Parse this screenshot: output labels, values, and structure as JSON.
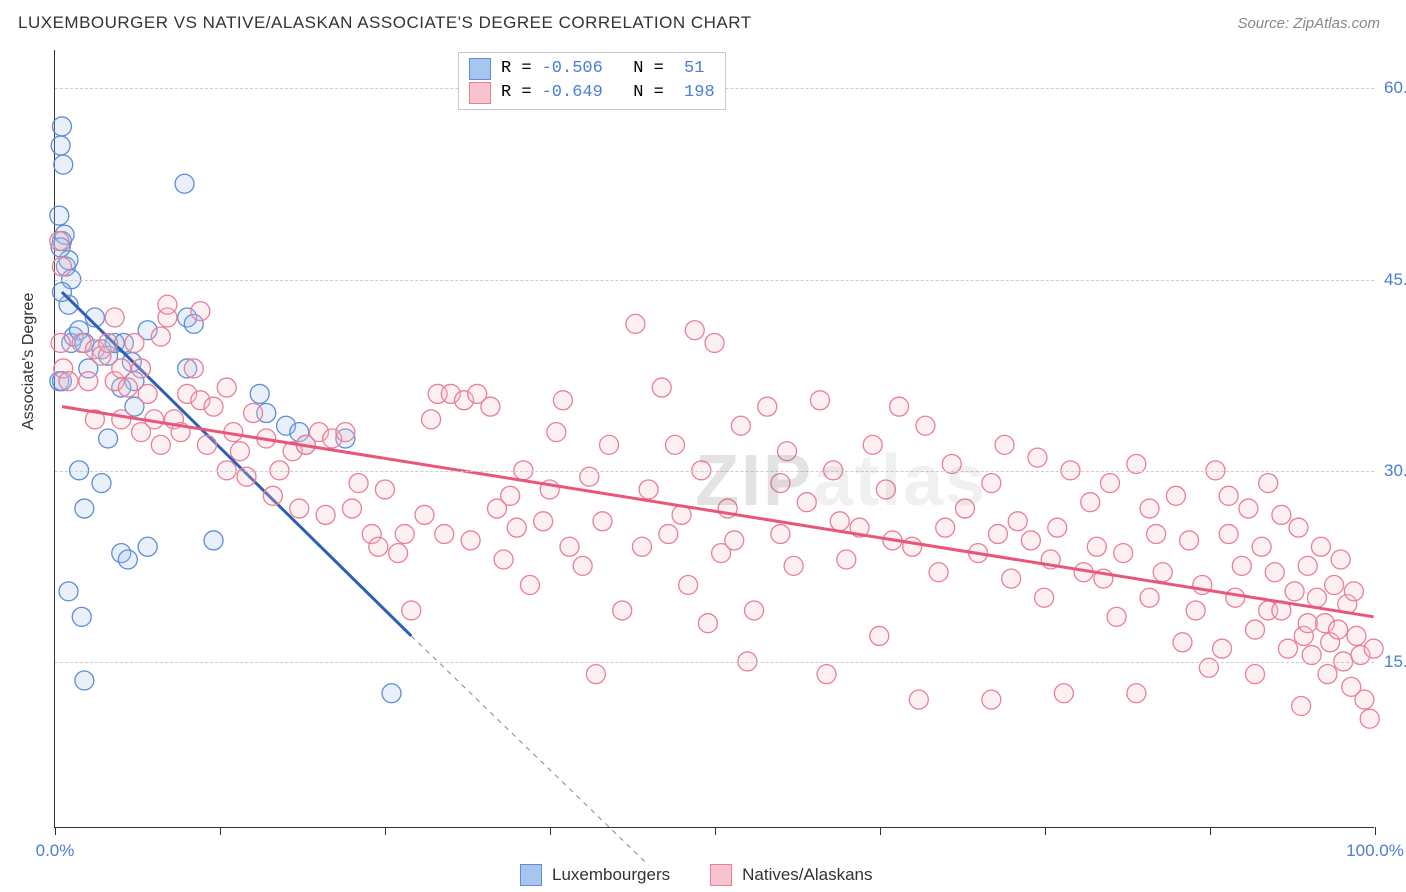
{
  "header": {
    "title": "LUXEMBOURGER VS NATIVE/ALASKAN ASSOCIATE'S DEGREE CORRELATION CHART",
    "source": "Source: ZipAtlas.com"
  },
  "watermark": {
    "zip": "ZIP",
    "atlas": "atlas"
  },
  "chart": {
    "type": "scatter",
    "y_axis_title": "Associate's Degree",
    "xlim": [
      0,
      100
    ],
    "ylim": [
      2,
      63
    ],
    "x_ticks": [
      0,
      12.5,
      25,
      37.5,
      50,
      62.5,
      75,
      87.5,
      100
    ],
    "x_tick_labels": {
      "0": "0.0%",
      "100": "100.0%"
    },
    "y_gridlines": [
      15,
      30,
      45,
      60
    ],
    "y_tick_labels": {
      "15": "15.0%",
      "30": "30.0%",
      "45": "45.0%",
      "60": "60.0%"
    },
    "background_color": "#ffffff",
    "grid_color": "#cccccc",
    "axis_color": "#333333",
    "ytick_label_color": "#4a7cd4",
    "marker_radius": 9.5,
    "series": [
      {
        "id": "luxembourgers",
        "label": "Luxembourgers",
        "fill": "#a7c5ed",
        "stroke": "#5c8dd6",
        "swatch_border": "#5c8dd6",
        "R": "-0.506",
        "N": "51",
        "trend": {
          "x1": 0.5,
          "y1": 44,
          "x2": 27,
          "y2": 17,
          "extend_x2": 45,
          "extend_y2": -1,
          "stroke": "#2d5fb5",
          "width": 3
        },
        "points": [
          [
            0.4,
            55.5
          ],
          [
            0.5,
            57
          ],
          [
            0.6,
            54
          ],
          [
            0.3,
            50
          ],
          [
            0.5,
            48
          ],
          [
            0.7,
            48.5
          ],
          [
            0.8,
            46
          ],
          [
            1.0,
            46.5
          ],
          [
            1.2,
            45
          ],
          [
            1.0,
            43
          ],
          [
            0.4,
            47.5
          ],
          [
            0.5,
            44
          ],
          [
            0.3,
            37
          ],
          [
            0.5,
            37
          ],
          [
            1.2,
            40
          ],
          [
            1.4,
            40.5
          ],
          [
            1.8,
            41
          ],
          [
            2.2,
            40
          ],
          [
            2.5,
            38
          ],
          [
            3.0,
            42
          ],
          [
            3.5,
            39.5
          ],
          [
            4.0,
            39
          ],
          [
            4.5,
            40
          ],
          [
            5.2,
            40
          ],
          [
            5.8,
            38.5
          ],
          [
            6.0,
            37
          ],
          [
            7.0,
            41
          ],
          [
            9.8,
            52.5
          ],
          [
            10.0,
            42
          ],
          [
            10.5,
            41.5
          ],
          [
            5.0,
            36.5
          ],
          [
            6.0,
            35
          ],
          [
            4.0,
            32.5
          ],
          [
            3.5,
            29
          ],
          [
            1.8,
            30
          ],
          [
            2.2,
            27
          ],
          [
            5.0,
            23.5
          ],
          [
            5.5,
            23
          ],
          [
            7.0,
            24
          ],
          [
            12.0,
            24.5
          ],
          [
            1.0,
            20.5
          ],
          [
            2.0,
            18.5
          ],
          [
            2.2,
            13.5
          ],
          [
            15.5,
            36
          ],
          [
            16.0,
            34.5
          ],
          [
            17.5,
            33.5
          ],
          [
            18.5,
            33
          ],
          [
            19.0,
            32
          ],
          [
            22.0,
            32.5
          ],
          [
            25.5,
            12.5
          ],
          [
            10.0,
            38
          ]
        ]
      },
      {
        "id": "natives_alaskans",
        "label": "Natives/Alaskans",
        "fill": "#f6c3ce",
        "stroke": "#ea7f96",
        "swatch_border": "#ea7f96",
        "R": "-0.649",
        "N": "198",
        "trend": {
          "x1": 0.5,
          "y1": 35,
          "x2": 100,
          "y2": 18.5,
          "stroke": "#e8567a",
          "width": 3
        },
        "points": [
          [
            0.3,
            48
          ],
          [
            0.5,
            46
          ],
          [
            0.4,
            40
          ],
          [
            0.6,
            38
          ],
          [
            1.0,
            37
          ],
          [
            2.0,
            40
          ],
          [
            2.5,
            37
          ],
          [
            3.0,
            39.5
          ],
          [
            3.0,
            34
          ],
          [
            3.5,
            39
          ],
          [
            4.0,
            40
          ],
          [
            4.5,
            37
          ],
          [
            5.0,
            38
          ],
          [
            5.5,
            36.5
          ],
          [
            6.0,
            40
          ],
          [
            6.5,
            38
          ],
          [
            7.0,
            36
          ],
          [
            7.5,
            34
          ],
          [
            8.0,
            40.5
          ],
          [
            8.5,
            42
          ],
          [
            9.0,
            34
          ],
          [
            10.0,
            36
          ],
          [
            10.5,
            38
          ],
          [
            11.0,
            35.5
          ],
          [
            12.0,
            35
          ],
          [
            13.0,
            36.5
          ],
          [
            13.5,
            33
          ],
          [
            14.0,
            31.5
          ],
          [
            15.0,
            34.5
          ],
          [
            16.0,
            32.5
          ],
          [
            17.0,
            30
          ],
          [
            18.0,
            31.5
          ],
          [
            19.0,
            32
          ],
          [
            20.0,
            33
          ],
          [
            21.0,
            32.5
          ],
          [
            22.0,
            33
          ],
          [
            23.0,
            29
          ],
          [
            24.0,
            25
          ],
          [
            25.0,
            28.5
          ],
          [
            26.0,
            23.5
          ],
          [
            27.0,
            19
          ],
          [
            28.0,
            26.5
          ],
          [
            28.5,
            34
          ],
          [
            29.0,
            36
          ],
          [
            30.0,
            36
          ],
          [
            31.0,
            35.5
          ],
          [
            32.0,
            36
          ],
          [
            33.0,
            35
          ],
          [
            33.5,
            27
          ],
          [
            34.0,
            23
          ],
          [
            35.0,
            25.5
          ],
          [
            35.5,
            30
          ],
          [
            36.0,
            21
          ],
          [
            37.0,
            26
          ],
          [
            38.0,
            33
          ],
          [
            38.5,
            35.5
          ],
          [
            39.0,
            24
          ],
          [
            40.0,
            22.5
          ],
          [
            40.5,
            29.5
          ],
          [
            41.0,
            14
          ],
          [
            42.0,
            32
          ],
          [
            43.0,
            19
          ],
          [
            44.0,
            41.5
          ],
          [
            45.0,
            28.5
          ],
          [
            46.0,
            36.5
          ],
          [
            46.5,
            25
          ],
          [
            47.0,
            32
          ],
          [
            48.0,
            21
          ],
          [
            48.5,
            41
          ],
          [
            49.0,
            30
          ],
          [
            50.0,
            40
          ],
          [
            50.5,
            23.5
          ],
          [
            51.0,
            27
          ],
          [
            52.0,
            33.5
          ],
          [
            53.0,
            19
          ],
          [
            54.0,
            35
          ],
          [
            55.0,
            25
          ],
          [
            55.5,
            31.5
          ],
          [
            56.0,
            22.5
          ],
          [
            57.0,
            27.5
          ],
          [
            58.0,
            35.5
          ],
          [
            58.5,
            14
          ],
          [
            59.0,
            30
          ],
          [
            60.0,
            23
          ],
          [
            61.0,
            25.5
          ],
          [
            62.0,
            32
          ],
          [
            62.5,
            17
          ],
          [
            63.0,
            28.5
          ],
          [
            64.0,
            35
          ],
          [
            65.0,
            24
          ],
          [
            66.0,
            33.5
          ],
          [
            67.0,
            22
          ],
          [
            68.0,
            30.5
          ],
          [
            69.0,
            27
          ],
          [
            70.0,
            23.5
          ],
          [
            65.5,
            12
          ],
          [
            71.0,
            29
          ],
          [
            72.0,
            32
          ],
          [
            72.5,
            21.5
          ],
          [
            73.0,
            26
          ],
          [
            74.0,
            24.5
          ],
          [
            74.5,
            31
          ],
          [
            75.0,
            20
          ],
          [
            76.0,
            25.5
          ],
          [
            77.0,
            30
          ],
          [
            78.0,
            22
          ],
          [
            78.5,
            27.5
          ],
          [
            79.0,
            24
          ],
          [
            80.0,
            29
          ],
          [
            80.5,
            18.5
          ],
          [
            81.0,
            23.5
          ],
          [
            82.0,
            30.5
          ],
          [
            83.0,
            20
          ],
          [
            83.5,
            25
          ],
          [
            84.0,
            22
          ],
          [
            85.0,
            28
          ],
          [
            85.5,
            16.5
          ],
          [
            86.0,
            24.5
          ],
          [
            87.0,
            21
          ],
          [
            88.0,
            30
          ],
          [
            88.5,
            16
          ],
          [
            89.0,
            25
          ],
          [
            89.5,
            20
          ],
          [
            90.0,
            22.5
          ],
          [
            90.5,
            27
          ],
          [
            91.0,
            17.5
          ],
          [
            91.5,
            24
          ],
          [
            92.0,
            19
          ],
          [
            92.5,
            22
          ],
          [
            93.0,
            26.5
          ],
          [
            93.5,
            16
          ],
          [
            94.0,
            20.5
          ],
          [
            94.3,
            25.5
          ],
          [
            94.7,
            17
          ],
          [
            95.0,
            22.5
          ],
          [
            95.3,
            15.5
          ],
          [
            95.7,
            20
          ],
          [
            96.0,
            24
          ],
          [
            96.3,
            18
          ],
          [
            96.7,
            16.5
          ],
          [
            97.0,
            21
          ],
          [
            97.3,
            17.5
          ],
          [
            97.7,
            15
          ],
          [
            98.0,
            19.5
          ],
          [
            98.3,
            13
          ],
          [
            98.7,
            17
          ],
          [
            99.0,
            15.5
          ],
          [
            99.3,
            12
          ],
          [
            99.7,
            10.5
          ],
          [
            100.0,
            16
          ],
          [
            4.5,
            42
          ],
          [
            5.0,
            34
          ],
          [
            6.5,
            33
          ],
          [
            8.0,
            32
          ],
          [
            9.5,
            33
          ],
          [
            11.5,
            32
          ],
          [
            13.0,
            30
          ],
          [
            14.5,
            29.5
          ],
          [
            16.5,
            28
          ],
          [
            18.5,
            27
          ],
          [
            20.5,
            26.5
          ],
          [
            22.5,
            27
          ],
          [
            24.5,
            24
          ],
          [
            26.5,
            25
          ],
          [
            29.5,
            25
          ],
          [
            31.5,
            24.5
          ],
          [
            34.5,
            28
          ],
          [
            37.5,
            28.5
          ],
          [
            41.5,
            26
          ],
          [
            44.5,
            24
          ],
          [
            47.5,
            26.5
          ],
          [
            51.5,
            24.5
          ],
          [
            55.0,
            29
          ],
          [
            59.5,
            26
          ],
          [
            63.5,
            24.5
          ],
          [
            67.5,
            25.5
          ],
          [
            71.5,
            25
          ],
          [
            75.5,
            23
          ],
          [
            79.5,
            21.5
          ],
          [
            83.0,
            27
          ],
          [
            86.5,
            19
          ],
          [
            89.0,
            28
          ],
          [
            91.0,
            14
          ],
          [
            93.0,
            19
          ],
          [
            95.0,
            18
          ],
          [
            96.5,
            14
          ],
          [
            97.5,
            23
          ],
          [
            98.5,
            20.5
          ],
          [
            71.0,
            12
          ],
          [
            76.5,
            12.5
          ],
          [
            82.0,
            12.5
          ],
          [
            87.5,
            14.5
          ],
          [
            92.0,
            29
          ],
          [
            94.5,
            11.5
          ],
          [
            8.5,
            43
          ],
          [
            11.0,
            42.5
          ],
          [
            49.5,
            18
          ],
          [
            52.5,
            15
          ]
        ]
      }
    ]
  },
  "bottom_legend": {
    "items": [
      {
        "label": "Luxembourgers",
        "fill": "#a7c5ed",
        "stroke": "#5c8dd6"
      },
      {
        "label": "Natives/Alaskans",
        "fill": "#f6c3ce",
        "stroke": "#ea7f96"
      }
    ]
  }
}
